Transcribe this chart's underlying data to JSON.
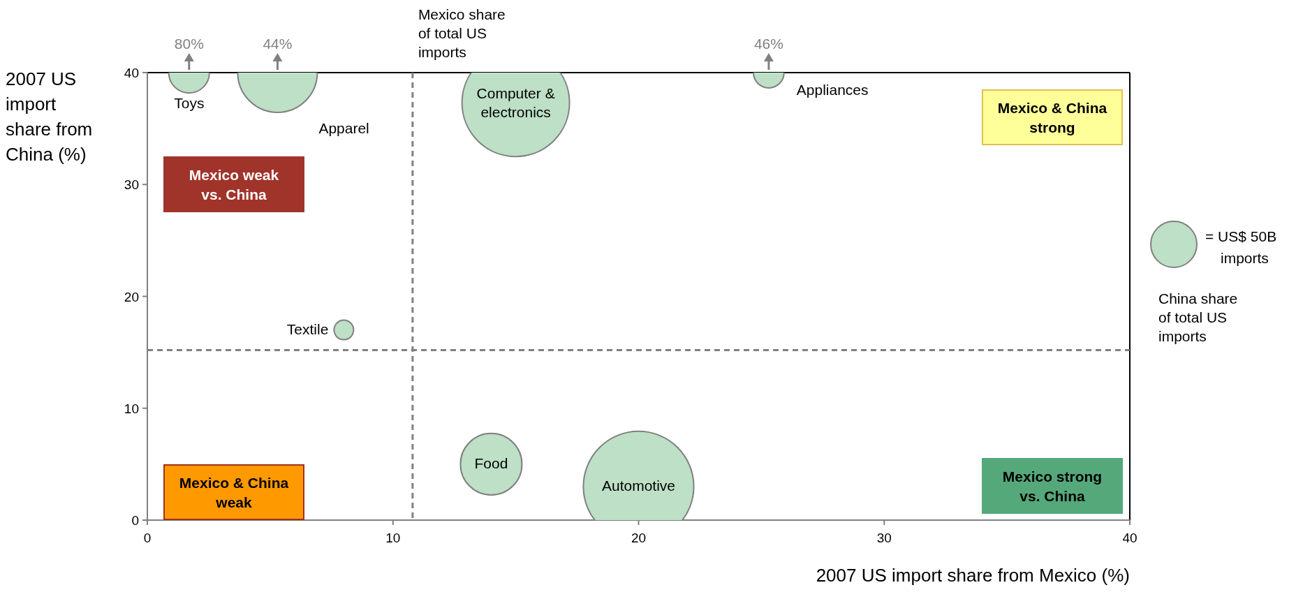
{
  "chart_data": {
    "type": "bubble",
    "xlabel": "2007 US import share from Mexico (%)",
    "ylabel": "2007 US import share from China (%)",
    "xlim": [
      0,
      40
    ],
    "xticks": [
      0,
      10,
      20,
      30,
      40
    ],
    "ylim": [
      0,
      40
    ],
    "yticks": [
      0,
      10,
      20,
      30,
      40
    ],
    "grid": false,
    "size_legend": [
      {
        "value": 50,
        "label": "= US$ 50B imports"
      }
    ],
    "series": [
      {
        "name": "Toys",
        "color": "#bde0c6",
        "x": [
          1.7
        ],
        "values": [
          40
        ],
        "sizes": [
          39
        ]
      },
      {
        "name": "Apparel",
        "color": "#bde0c6",
        "x": [
          5.3
        ],
        "values": [
          40
        ],
        "sizes": [
          149
        ]
      },
      {
        "name": "Computer & electronics",
        "color": "#bde0c6",
        "x": [
          15.0
        ],
        "values": [
          37.3
        ],
        "sizes": [
          272
        ]
      },
      {
        "name": "Appliances",
        "color": "#bde0c6",
        "x": [
          25.3
        ],
        "values": [
          40
        ],
        "sizes": [
          22
        ]
      },
      {
        "name": "Textile",
        "color": "#bde0c6",
        "x": [
          8.0
        ],
        "values": [
          17.0
        ],
        "sizes": [
          9
        ]
      },
      {
        "name": "Food",
        "color": "#bde0c6",
        "x": [
          14.0
        ],
        "values": [
          5.0
        ],
        "sizes": [
          89
        ]
      },
      {
        "name": "Automotive",
        "color": "#bde0c6",
        "x": [
          20.0
        ],
        "values": [
          3.0
        ],
        "sizes": [
          287
        ]
      }
    ],
    "ref_lines": [
      {
        "axis": "x",
        "value": 10.8,
        "label": "Mexico share of total US imports",
        "line_style": "dashed",
        "color": "#808080"
      },
      {
        "axis": "y",
        "value": 15.2,
        "label": "China share of total US imports",
        "line_style": "dashed",
        "color": "#808080"
      }
    ],
    "annotations": [
      {
        "text": "80%",
        "x": 1.7,
        "y": 40
      },
      {
        "text": "44%",
        "x": 5.3,
        "y": 40
      },
      {
        "text": "46%",
        "x": 25.3,
        "y": 40
      },
      "Mexico weak vs. China",
      "Mexico & China strong",
      "Mexico & China weak",
      "Mexico strong vs. China"
    ]
  }
}
